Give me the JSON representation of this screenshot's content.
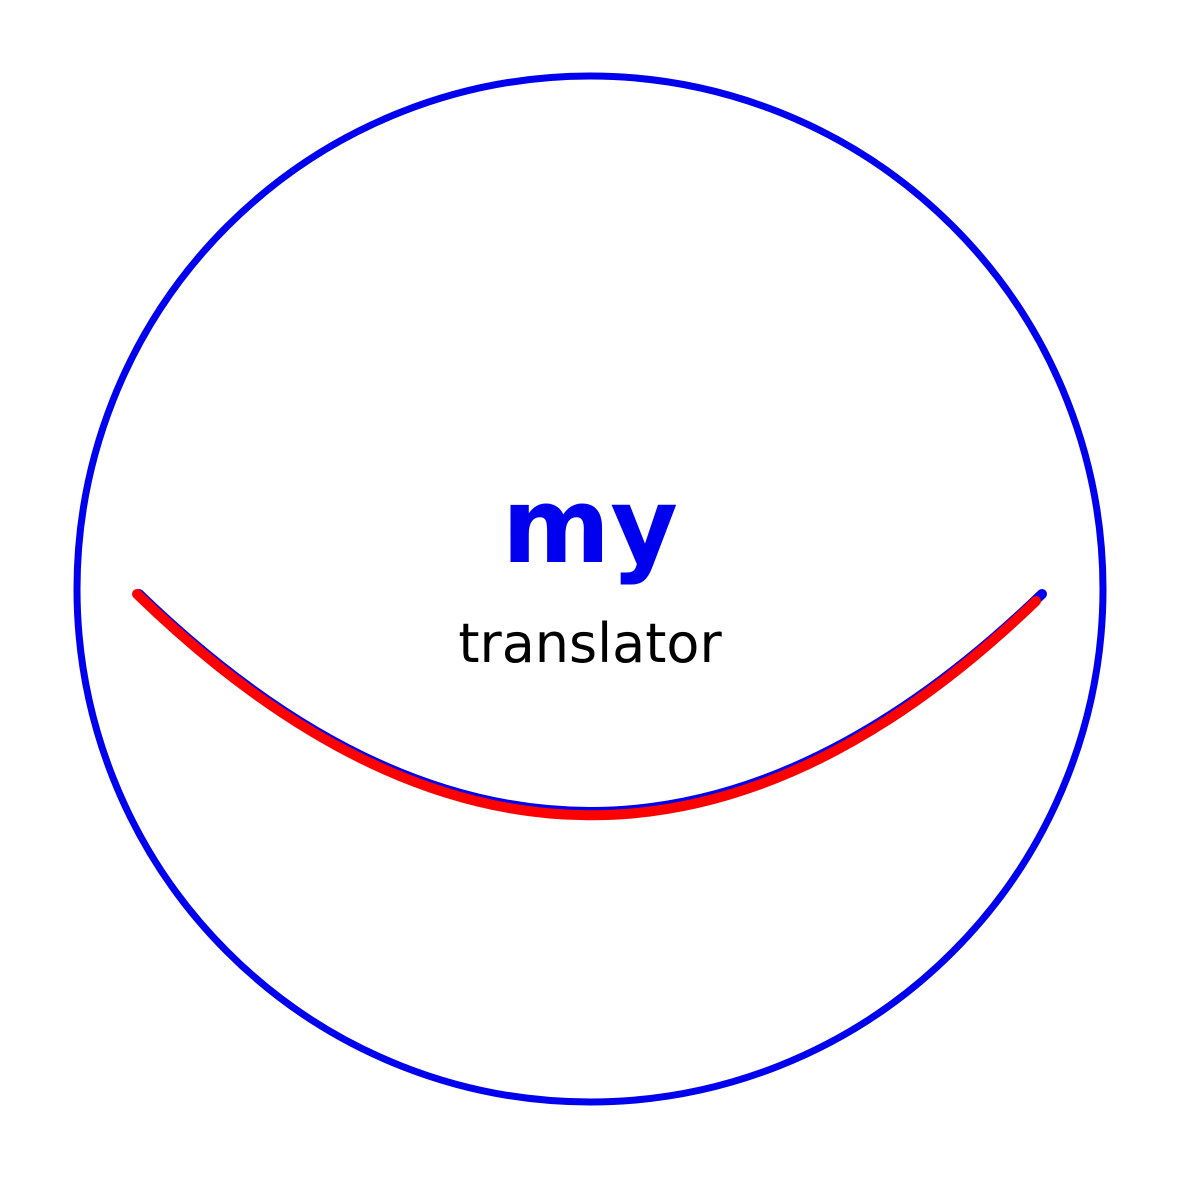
{
  "logo": {
    "brand_word": "my",
    "tagline": "translator",
    "colors": {
      "ring": "#0000ee",
      "brand_word": "#0000ee",
      "smile": "#ff0000",
      "smile_shadow": "#0000ee",
      "tagline": "#000000",
      "background": "#ffffff"
    }
  }
}
